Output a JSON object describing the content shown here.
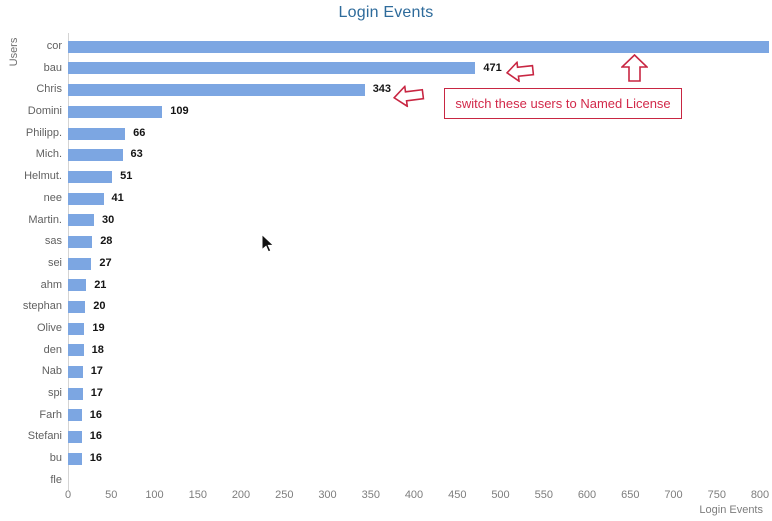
{
  "title": "Login Events",
  "y_axis_title": "Users",
  "x_axis_title": "Login Events",
  "annotation": {
    "box_text": "switch these users to Named License",
    "arrows": [
      "left-arrow-pointing-at-471-bar",
      "left-arrow-pointing-at-343-bar",
      "up-arrow-pointing-at-top-bar"
    ]
  },
  "colors": {
    "bar": "#7ca6e2",
    "title_text": "#2e6b9b",
    "annotation_red": "#c82642",
    "axis_text": "#6e6e6e",
    "value_text": "#141414"
  },
  "chart_data": {
    "type": "bar",
    "orientation": "horizontal",
    "title": "Login Events",
    "xlabel": "Login Events",
    "ylabel": "Users",
    "xlim": [
      0,
      800
    ],
    "xticks": [
      0,
      50,
      100,
      150,
      200,
      250,
      300,
      350,
      400,
      450,
      500,
      550,
      600,
      650,
      700,
      750,
      800
    ],
    "grid": false,
    "legend": "none",
    "categories": [
      "cor",
      "bau",
      "Chris",
      "Domini",
      "Philipp.",
      "Mich.",
      "Helmut.",
      "nee",
      "Martin.",
      "sas",
      "sei",
      "ahm",
      "stephan",
      "Olive",
      "den",
      "Nab",
      "spi",
      "Farh",
      "Stefani",
      "bu",
      "fle"
    ],
    "values": [
      810,
      471,
      343,
      109,
      66,
      63,
      51,
      41,
      30,
      28,
      27,
      21,
      20,
      19,
      18,
      17,
      17,
      16,
      16,
      16,
      0
    ],
    "value_labels": [
      "",
      "471",
      "343",
      "109",
      "66",
      "63",
      "51",
      "41",
      "30",
      "28",
      "27",
      "21",
      "20",
      "19",
      "18",
      "17",
      "17",
      "16",
      "16",
      "16",
      ""
    ],
    "notes": "top bar (cor) is clipped at the right image edge beyond the 800 tick, value estimated; bottom row (fle) shows no visible bar"
  }
}
